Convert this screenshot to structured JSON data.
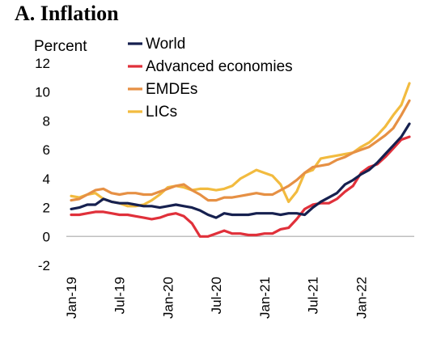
{
  "chart_data": {
    "type": "line",
    "title": "A. Inflation",
    "ylabel": "Percent",
    "xlabel": "",
    "ylim": [
      -2,
      12
    ],
    "yticks": [
      -2,
      0,
      2,
      4,
      6,
      8,
      10,
      12
    ],
    "x_start": "Jan-19",
    "x_end": "Jun-22",
    "xticks": [
      "Jan-19",
      "Jul-19",
      "Jan-20",
      "Jul-20",
      "Jan-21",
      "Jul-21",
      "Jan-22"
    ],
    "legend_position": "top-left",
    "grid": false,
    "series": [
      {
        "name": "World",
        "color": "#16204f",
        "values": [
          1.9,
          2.0,
          2.2,
          2.2,
          2.6,
          2.4,
          2.3,
          2.3,
          2.2,
          2.1,
          2.1,
          2.0,
          2.1,
          2.2,
          2.1,
          2.0,
          1.8,
          1.5,
          1.3,
          1.6,
          1.5,
          1.5,
          1.5,
          1.6,
          1.6,
          1.6,
          1.5,
          1.6,
          1.6,
          1.5,
          2.0,
          2.4,
          2.7,
          3.0,
          3.6,
          3.9,
          4.3,
          4.6,
          5.1,
          5.7,
          6.3,
          6.9,
          7.8
        ]
      },
      {
        "name": "Advanced economies",
        "color": "#e0303a",
        "values": [
          1.5,
          1.5,
          1.6,
          1.7,
          1.7,
          1.6,
          1.5,
          1.5,
          1.4,
          1.3,
          1.2,
          1.3,
          1.5,
          1.6,
          1.4,
          0.9,
          0.0,
          0.0,
          0.2,
          0.4,
          0.2,
          0.2,
          0.1,
          0.1,
          0.2,
          0.2,
          0.5,
          0.6,
          1.2,
          1.9,
          2.2,
          2.3,
          2.3,
          2.6,
          3.1,
          3.5,
          4.4,
          4.8,
          5.0,
          5.5,
          6.1,
          6.7,
          6.9
        ]
      },
      {
        "name": "EMDEs",
        "color": "#e69044",
        "values": [
          2.5,
          2.6,
          2.9,
          3.2,
          3.3,
          3.0,
          2.9,
          3.0,
          3.0,
          2.9,
          2.9,
          3.1,
          3.3,
          3.5,
          3.6,
          3.2,
          2.9,
          2.5,
          2.5,
          2.7,
          2.7,
          2.8,
          2.9,
          3.0,
          2.9,
          2.9,
          3.2,
          3.5,
          3.9,
          4.4,
          4.8,
          4.9,
          5.0,
          5.3,
          5.5,
          5.8,
          6.0,
          6.2,
          6.6,
          7.0,
          7.5,
          8.4,
          9.4
        ]
      },
      {
        "name": "LICs",
        "color": "#f2bb3f",
        "values": [
          2.8,
          2.7,
          2.9,
          3.0,
          2.6,
          2.4,
          2.3,
          2.1,
          2.1,
          2.2,
          2.5,
          2.9,
          3.4,
          3.5,
          3.4,
          3.2,
          3.3,
          3.3,
          3.2,
          3.3,
          3.5,
          4.0,
          4.3,
          4.6,
          4.4,
          4.2,
          3.6,
          2.4,
          3.1,
          4.4,
          4.6,
          5.4,
          5.5,
          5.6,
          5.7,
          5.8,
          6.2,
          6.5,
          7.0,
          7.6,
          8.4,
          9.1,
          10.6
        ]
      }
    ]
  }
}
